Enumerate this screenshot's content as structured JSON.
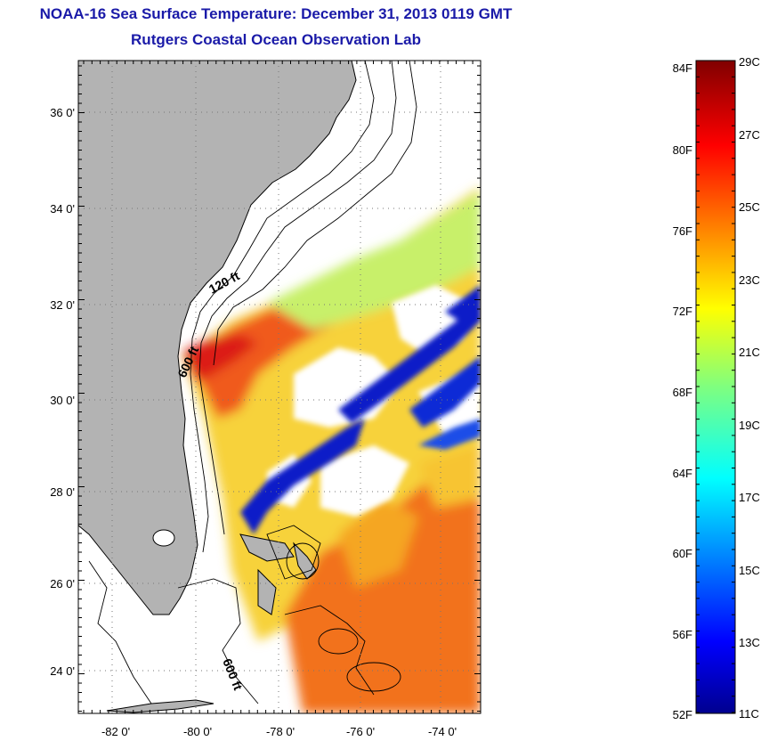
{
  "title_line1": "NOAA-16 Sea Surface Temperature:  December 31, 2013 0119 GMT",
  "title_line2": "Rutgers Coastal Ocean Observation Lab",
  "map": {
    "lat_labels": [
      "36 0'",
      "34 0'",
      "32 0'",
      "30 0'",
      "28 0'",
      "26 0'",
      "24 0'"
    ],
    "lon_labels": [
      "-82 0'",
      "-80 0'",
      "-78 0'",
      "-76 0'",
      "-74 0'"
    ],
    "contour_labels": [
      "120 ft",
      "600 ft",
      "600 ft"
    ],
    "land_color": "#b3b3b3"
  },
  "colorbar": {
    "fahrenheit_labels": [
      "84F",
      "80F",
      "76F",
      "72F",
      "68F",
      "64F",
      "60F",
      "56F",
      "52F"
    ],
    "celsius_labels": [
      "29C",
      "27C",
      "25C",
      "23C",
      "21C",
      "19C",
      "17C",
      "15C",
      "13C",
      "11C"
    ],
    "colormap": "jet"
  }
}
